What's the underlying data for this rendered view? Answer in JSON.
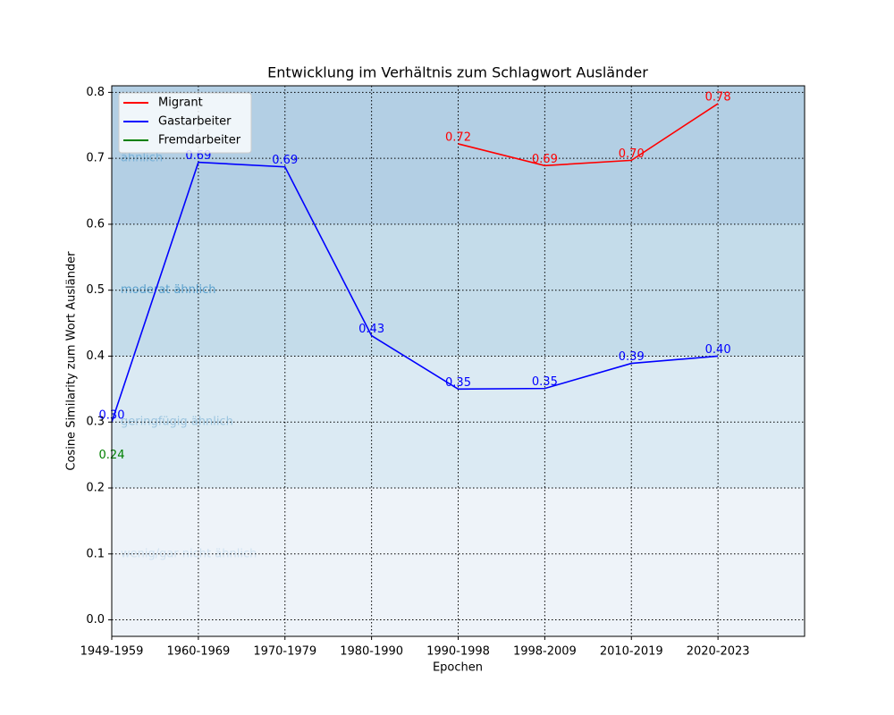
{
  "chart_data": {
    "type": "line",
    "title": "Entwicklung im Verhältnis zum Schlagwort Ausländer",
    "x_label": "Epochen",
    "y_label": "Cosine Similarity zum Wort Ausländer",
    "categories": [
      "1949-1959",
      "1960-1969",
      "1970-1979",
      "1980-1990",
      "1990-1998",
      "1998-2009",
      "2010-2019",
      "2020-2023"
    ],
    "xlim": [
      0,
      8
    ],
    "ylim": [
      -0.025,
      0.81
    ],
    "yticks": [
      {
        "value": 0,
        "label": "0.0"
      },
      0.1,
      0.2,
      0.3,
      0.4,
      0.5,
      0.6,
      0.7,
      0.8
    ],
    "grid": true,
    "legend": "upper left",
    "bands": [
      {
        "label": "wenig/gar nicht ähnlich",
        "range": [
          -0.1,
          0.2
        ],
        "color": "#eef3f9",
        "text_color": "#cfe1f0"
      },
      {
        "label": "geringfügig ähnlich",
        "range": [
          0.2,
          0.4
        ],
        "color": "#dbeaf3",
        "text_color": "#9cc5df"
      },
      {
        "label": "moderat ähnlich",
        "range": [
          0.4,
          0.6
        ],
        "color": "#c4dcea",
        "text_color": "#5ba1cd"
      },
      {
        "label": "ähnlich",
        "range": [
          0.6,
          1.0
        ],
        "color": "#b3cfe4",
        "text_color": "#79b1d7"
      }
    ],
    "series": [
      {
        "name": "Migrant",
        "color": "#ff0000",
        "values": [
          null,
          null,
          null,
          null,
          0.722,
          0.689,
          0.697,
          0.783
        ],
        "value_labels": [
          null,
          null,
          null,
          null,
          "0.72",
          "0.69",
          "0.70",
          "0.78"
        ]
      },
      {
        "name": "Gastarbeiter",
        "color": "#0000ff",
        "values": [
          0.3,
          0.694,
          0.687,
          0.431,
          0.35,
          0.351,
          0.389,
          0.4
        ],
        "value_labels": [
          "0.30",
          "0.69",
          "0.69",
          "0.43",
          "0.35",
          "0.35",
          "0.39",
          "0.40"
        ]
      },
      {
        "name": "Fremdarbeiter",
        "color": "#008000",
        "values": [
          0.24,
          null,
          null,
          null,
          null,
          null,
          null,
          null
        ],
        "value_labels": [
          "0.24",
          null,
          null,
          null,
          null,
          null,
          null,
          null
        ]
      }
    ]
  }
}
